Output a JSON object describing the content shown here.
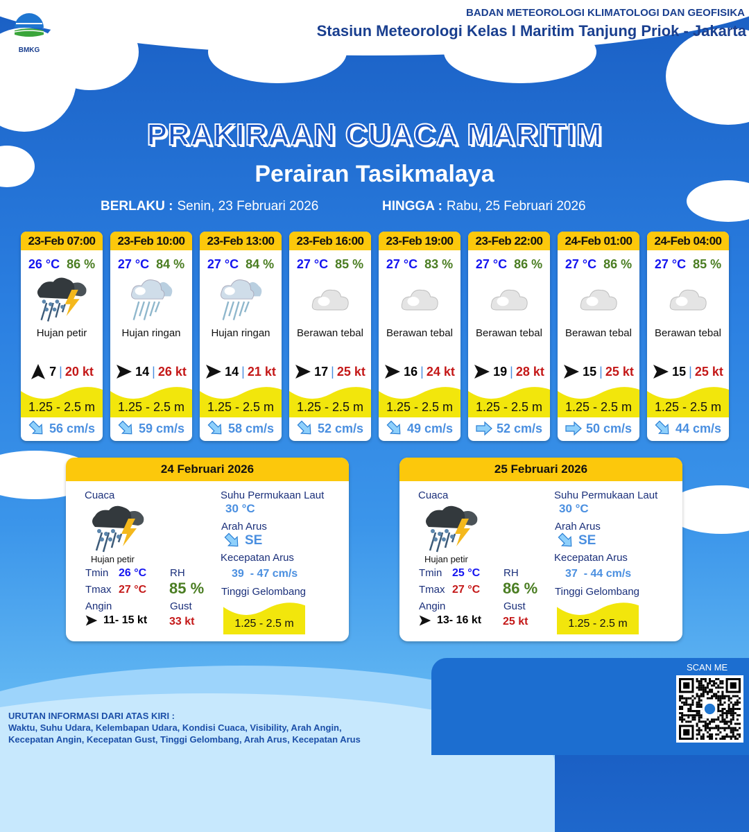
{
  "header": {
    "agency": "BADAN METEOROLOGI KLIMATOLOGI DAN GEOFISIKA",
    "station": "Stasiun Meteorologi Kelas I Maritim Tanjung Priok - Jakarta",
    "logo_text": "BMKG"
  },
  "title": "PRAKIRAAN CUACA MARITIM",
  "subtitle": "Perairan Tasikmalaya",
  "validity": {
    "from_label": "BERLAKU :",
    "from": "Senin, 23 Februari 2026",
    "to_label": "HINGGA :",
    "to": "Rabu, 25 Februari 2026"
  },
  "colors": {
    "header_yellow": "#fcc80c",
    "temp": "#1414f0",
    "rh": "#4a7d22",
    "gust": "#c41818",
    "current": "#4a8fe0",
    "wave": "#f2e60c"
  },
  "forecasts": [
    {
      "time": "23-Feb 07:00",
      "temp": "26 °C",
      "rh": "86 %",
      "icon": "thunderstorm",
      "cond": "Hujan petir",
      "wind_dir": "N",
      "wind": "7",
      "gust": "20 kt",
      "wave": "1.25 - 2.5 m",
      "current_dir": "SE",
      "current": "56 cm/s"
    },
    {
      "time": "23-Feb 10:00",
      "temp": "27 °C",
      "rh": "84 %",
      "icon": "light-rain",
      "cond": "Hujan ringan",
      "wind_dir": "E",
      "wind": "14",
      "gust": "26 kt",
      "wave": "1.25 - 2.5 m",
      "current_dir": "SE",
      "current": "59 cm/s"
    },
    {
      "time": "23-Feb 13:00",
      "temp": "27 °C",
      "rh": "84 %",
      "icon": "light-rain",
      "cond": "Hujan ringan",
      "wind_dir": "E",
      "wind": "14",
      "gust": "21 kt",
      "wave": "1.25 - 2.5 m",
      "current_dir": "SE",
      "current": "58 cm/s"
    },
    {
      "time": "23-Feb 16:00",
      "temp": "27 °C",
      "rh": "85 %",
      "icon": "overcast",
      "cond": "Berawan tebal",
      "wind_dir": "E",
      "wind": "17",
      "gust": "25 kt",
      "wave": "1.25 - 2.5 m",
      "current_dir": "SE",
      "current": "52 cm/s"
    },
    {
      "time": "23-Feb 19:00",
      "temp": "27 °C",
      "rh": "83 %",
      "icon": "overcast",
      "cond": "Berawan tebal",
      "wind_dir": "E",
      "wind": "16",
      "gust": "24 kt",
      "wave": "1.25 - 2.5 m",
      "current_dir": "SE",
      "current": "49 cm/s"
    },
    {
      "time": "23-Feb 22:00",
      "temp": "27 °C",
      "rh": "86 %",
      "icon": "overcast",
      "cond": "Berawan tebal",
      "wind_dir": "E",
      "wind": "19",
      "gust": "28 kt",
      "wave": "1.25 - 2.5 m",
      "current_dir": "E",
      "current": "52 cm/s"
    },
    {
      "time": "24-Feb 01:00",
      "temp": "27 °C",
      "rh": "86 %",
      "icon": "overcast",
      "cond": "Berawan tebal",
      "wind_dir": "E",
      "wind": "15",
      "gust": "25 kt",
      "wave": "1.25 - 2.5 m",
      "current_dir": "E",
      "current": "50 cm/s"
    },
    {
      "time": "24-Feb 04:00",
      "temp": "27 °C",
      "rh": "85 %",
      "icon": "overcast",
      "cond": "Berawan tebal",
      "wind_dir": "E",
      "wind": "15",
      "gust": "25 kt",
      "wave": "1.25 - 2.5 m",
      "current_dir": "SE",
      "current": "44 cm/s"
    }
  ],
  "labels": {
    "weather": "Cuaca",
    "tmin": "Tmin",
    "tmax": "Tmax",
    "rh": "RH",
    "wind": "Angin",
    "gust": "Gust",
    "sst": "Suhu Permukaan Laut",
    "current_dir": "Arah Arus",
    "current_speed": "Kecepatan Arus",
    "wave": "Tinggi Gelombang"
  },
  "daily": [
    {
      "date": "24 Februari 2026",
      "icon": "thunderstorm",
      "cond": "Hujan petir",
      "tmin": "26 °C",
      "tmax": "27 °C",
      "rh": "85 %",
      "wind_dir": "E",
      "wind": "11- 15 kt",
      "gust": "33 kt",
      "sst": "30 °C",
      "current_dir": "SE",
      "current": "39  - 47 cm/s",
      "wave": "1.25 - 2.5 m"
    },
    {
      "date": "25 Februari 2026",
      "icon": "thunderstorm",
      "cond": "Hujan petir",
      "tmin": "25 °C",
      "tmax": "27 °C",
      "rh": "86 %",
      "wind_dir": "E",
      "wind": "13- 16 kt",
      "gust": "25 kt",
      "sst": "30 °C",
      "current_dir": "SE",
      "current": "37  - 44 cm/s",
      "wave": "1.25 - 2.5 m"
    }
  ],
  "footer": {
    "heading": "URUTAN INFORMASI DARI ATAS KIRI :",
    "line1": "Waktu, Suhu Udara, Kelembapan Udara, Kondisi Cuaca, Visibility, Arah Angin,",
    "line2": "Kecepatan Angin, Kecepatan Gust, Tinggi Gelombang, Arah Arus, Kecepatan Arus",
    "scan": "SCAN ME"
  }
}
